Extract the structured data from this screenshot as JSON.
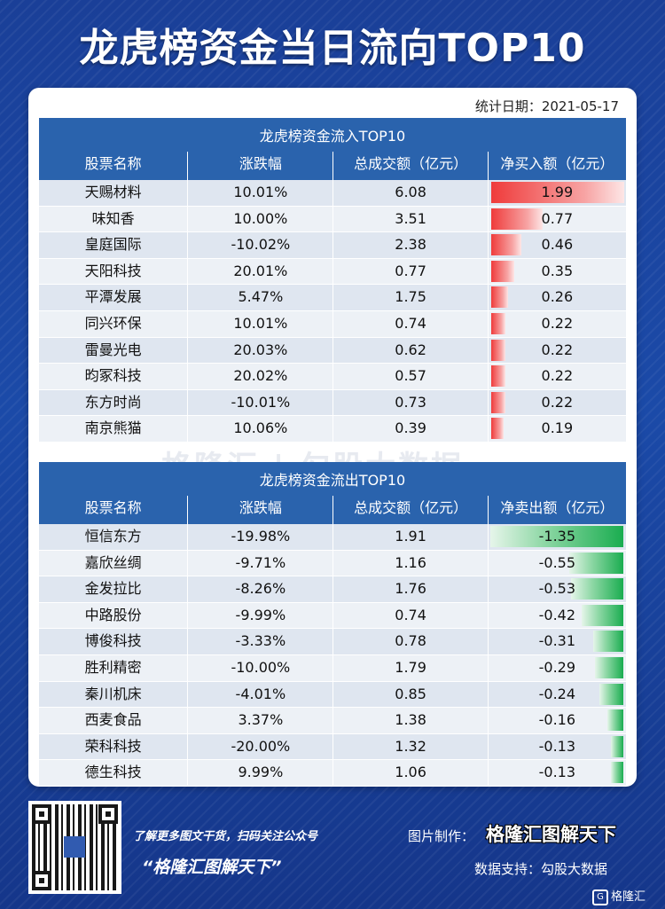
{
  "title": "龙虎榜资金当日流向TOP10",
  "date": "统计日期：2021-05-17",
  "columns": [
    "股票名称",
    "涨跌幅",
    "总成交额（亿元）"
  ],
  "inflow": {
    "title": "龙虎榜资金流入TOP10",
    "net_label": "净买入额（亿元）",
    "rows": [
      {
        "name": "天赐材料",
        "change": "10.01%",
        "turnover": "6.08",
        "net": "1.99",
        "v": 1.99
      },
      {
        "name": "味知香",
        "change": "10.00%",
        "turnover": "3.51",
        "net": "0.77",
        "v": 0.77
      },
      {
        "name": "皇庭国际",
        "change": "-10.02%",
        "turnover": "2.38",
        "net": "0.46",
        "v": 0.46
      },
      {
        "name": "天阳科技",
        "change": "20.01%",
        "turnover": "0.77",
        "net": "0.35",
        "v": 0.35
      },
      {
        "name": "平潭发展",
        "change": "5.47%",
        "turnover": "1.75",
        "net": "0.26",
        "v": 0.26
      },
      {
        "name": "同兴环保",
        "change": "10.01%",
        "turnover": "0.74",
        "net": "0.22",
        "v": 0.22
      },
      {
        "name": "雷曼光电",
        "change": "20.03%",
        "turnover": "0.62",
        "net": "0.22",
        "v": 0.22
      },
      {
        "name": "昀冢科技",
        "change": "20.02%",
        "turnover": "0.57",
        "net": "0.22",
        "v": 0.22
      },
      {
        "name": "东方时尚",
        "change": "-10.01%",
        "turnover": "0.73",
        "net": "0.22",
        "v": 0.22
      },
      {
        "name": "南京熊猫",
        "change": "10.06%",
        "turnover": "0.39",
        "net": "0.19",
        "v": 0.19
      }
    ]
  },
  "outflow": {
    "title": "龙虎榜资金流出TOP10",
    "net_label": "净卖出额（亿元）",
    "rows": [
      {
        "name": "恒信东方",
        "change": "-19.98%",
        "turnover": "1.91",
        "net": "-1.35",
        "v": 1.35
      },
      {
        "name": "嘉欣丝绸",
        "change": "-9.71%",
        "turnover": "1.16",
        "net": "-0.55",
        "v": 0.55
      },
      {
        "name": "金发拉比",
        "change": "-8.26%",
        "turnover": "1.76",
        "net": "-0.53",
        "v": 0.53
      },
      {
        "name": "中路股份",
        "change": "-9.99%",
        "turnover": "0.74",
        "net": "-0.42",
        "v": 0.42
      },
      {
        "name": "博俊科技",
        "change": "-3.33%",
        "turnover": "0.78",
        "net": "-0.31",
        "v": 0.31
      },
      {
        "name": "胜利精密",
        "change": "-10.00%",
        "turnover": "1.79",
        "net": "-0.29",
        "v": 0.29
      },
      {
        "name": "秦川机床",
        "change": "-4.01%",
        "turnover": "0.85",
        "net": "-0.24",
        "v": 0.24
      },
      {
        "name": "西麦食品",
        "change": "3.37%",
        "turnover": "1.38",
        "net": "-0.16",
        "v": 0.16
      },
      {
        "name": "荣科科技",
        "change": "-20.00%",
        "turnover": "1.32",
        "net": "-0.13",
        "v": 0.13
      },
      {
        "name": "德生科技",
        "change": "9.99%",
        "turnover": "1.06",
        "net": "-0.13",
        "v": 0.13
      }
    ]
  },
  "watermark": "格隆汇 | 勾股大数据",
  "footer": {
    "promo_line1": "了解更多图文干货，扫码关注公众号",
    "promo_line2": "“格隆汇图解天下”",
    "made_label": "图片制作：",
    "made_value": "格隆汇图解天下",
    "support": "数据支持：勾股大数据",
    "brand": "格隆汇",
    "brand_icon_letter": "G"
  },
  "colors": {
    "header_blue": "#2a63ad",
    "inflow_bar": "#ef3b3b",
    "outflow_bar": "#1aad50",
    "bg": "#1b4aa8"
  }
}
